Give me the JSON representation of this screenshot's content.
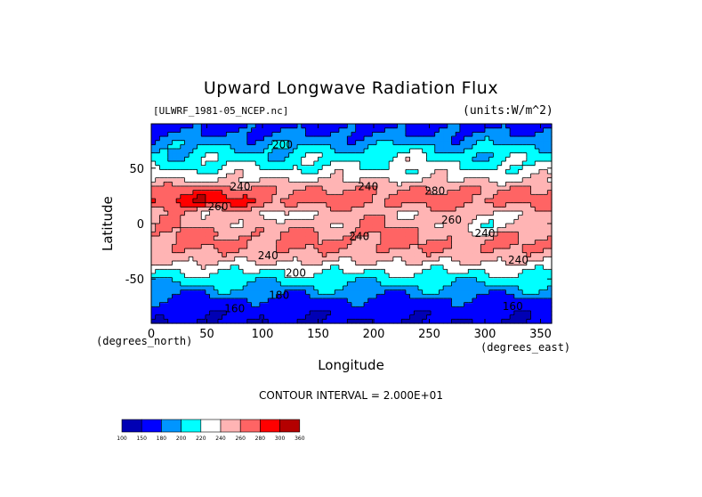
{
  "chart_data": {
    "type": "heatmap",
    "title": "Upward Longwave Radiation Flux",
    "source_label": "[ULWRF_1981-05_NCEP.nc]",
    "units_label": "(units:W/m^2)",
    "xlabel": "Longitude",
    "ylabel": "Latitude",
    "x_unit_label": "(degrees_east)",
    "y_unit_label": "(degrees_north)",
    "xlim": [
      0,
      360
    ],
    "ylim": [
      -90,
      90
    ],
    "x_ticks": [
      0,
      50,
      100,
      150,
      200,
      250,
      300,
      350
    ],
    "y_ticks": [
      -50,
      0,
      50
    ],
    "contour_interval_text": "CONTOUR INTERVAL = 2.000E+01",
    "colorbar_levels": [
      "100",
      "150",
      "180",
      "200",
      "220",
      "240",
      "260",
      "280",
      "300",
      "360"
    ],
    "colorbar_colors": [
      "#0000b4",
      "#0000ff",
      "#0095ff",
      "#00ffff",
      "#ffffff",
      "#ffb4b4",
      "#ff6464",
      "#ff0000",
      "#b40000"
    ],
    "contour_labels": [
      {
        "text": "200",
        "lon": 118,
        "lat": 68
      },
      {
        "text": "240",
        "lon": 195,
        "lat": 30
      },
      {
        "text": "240",
        "lon": 80,
        "lat": 30
      },
      {
        "text": "260",
        "lon": 60,
        "lat": 12
      },
      {
        "text": "280",
        "lon": 255,
        "lat": 26
      },
      {
        "text": "240",
        "lon": 187,
        "lat": -15
      },
      {
        "text": "260",
        "lon": 270,
        "lat": 0
      },
      {
        "text": "240",
        "lon": 300,
        "lat": -12
      },
      {
        "text": "240",
        "lon": 105,
        "lat": -32
      },
      {
        "text": "240",
        "lon": 330,
        "lat": -36
      },
      {
        "text": "200",
        "lon": 130,
        "lat": -48
      },
      {
        "text": "180",
        "lon": 115,
        "lat": -68
      },
      {
        "text": "160",
        "lon": 75,
        "lat": -80
      },
      {
        "text": "160",
        "lon": 325,
        "lat": -78
      }
    ],
    "field_lat_profile": [
      {
        "lat": 90,
        "value": 172
      },
      {
        "lat": 80,
        "value": 182
      },
      {
        "lat": 70,
        "value": 198
      },
      {
        "lat": 60,
        "value": 210
      },
      {
        "lat": 50,
        "value": 222
      },
      {
        "lat": 40,
        "value": 238
      },
      {
        "lat": 30,
        "value": 262
      },
      {
        "lat": 20,
        "value": 268
      },
      {
        "lat": 10,
        "value": 248
      },
      {
        "lat": 0,
        "value": 252
      },
      {
        "lat": -10,
        "value": 262
      },
      {
        "lat": -20,
        "value": 262
      },
      {
        "lat": -30,
        "value": 250
      },
      {
        "lat": -40,
        "value": 228
      },
      {
        "lat": -50,
        "value": 210
      },
      {
        "lat": -60,
        "value": 192
      },
      {
        "lat": -70,
        "value": 172
      },
      {
        "lat": -80,
        "value": 158
      },
      {
        "lat": -90,
        "value": 150
      }
    ]
  }
}
